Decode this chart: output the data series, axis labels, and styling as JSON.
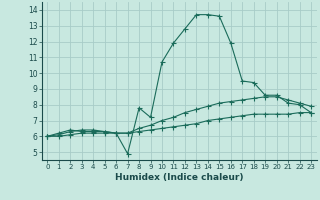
{
  "xlabel": "Humidex (Indice chaleur)",
  "bg_color": "#c8e8e0",
  "grid_color": "#a8ccc8",
  "line_color": "#1a6b5a",
  "xlim": [
    -0.5,
    23.5
  ],
  "ylim": [
    4.5,
    14.5
  ],
  "xticks": [
    0,
    1,
    2,
    3,
    4,
    5,
    6,
    7,
    8,
    9,
    10,
    11,
    12,
    13,
    14,
    15,
    16,
    17,
    18,
    19,
    20,
    21,
    22,
    23
  ],
  "yticks": [
    5,
    6,
    7,
    8,
    9,
    10,
    11,
    12,
    13,
    14
  ],
  "line1_x": [
    0,
    1,
    2,
    3,
    4,
    5,
    6,
    7,
    8,
    9,
    10,
    11,
    12,
    13,
    14,
    15,
    16,
    17,
    18,
    19,
    20,
    21,
    22,
    23
  ],
  "line1_y": [
    6.0,
    6.2,
    6.4,
    6.3,
    6.3,
    6.3,
    6.2,
    4.9,
    7.8,
    7.2,
    10.7,
    11.9,
    12.8,
    13.7,
    13.7,
    13.6,
    11.9,
    9.5,
    9.4,
    8.6,
    8.6,
    8.1,
    8.0,
    7.5
  ],
  "line2_x": [
    0,
    1,
    2,
    3,
    4,
    5,
    6,
    7,
    8,
    9,
    10,
    11,
    12,
    13,
    14,
    15,
    16,
    17,
    18,
    19,
    20,
    21,
    22,
    23
  ],
  "line2_y": [
    6.0,
    6.1,
    6.3,
    6.4,
    6.4,
    6.3,
    6.2,
    6.2,
    6.5,
    6.7,
    7.0,
    7.2,
    7.5,
    7.7,
    7.9,
    8.1,
    8.2,
    8.3,
    8.4,
    8.5,
    8.5,
    8.3,
    8.1,
    7.9
  ],
  "line3_x": [
    0,
    1,
    2,
    3,
    4,
    5,
    6,
    7,
    8,
    9,
    10,
    11,
    12,
    13,
    14,
    15,
    16,
    17,
    18,
    19,
    20,
    21,
    22,
    23
  ],
  "line3_y": [
    6.0,
    6.0,
    6.1,
    6.2,
    6.2,
    6.2,
    6.2,
    6.2,
    6.3,
    6.4,
    6.5,
    6.6,
    6.7,
    6.8,
    7.0,
    7.1,
    7.2,
    7.3,
    7.4,
    7.4,
    7.4,
    7.4,
    7.5,
    7.5
  ],
  "xtick_fontsize": 5.0,
  "ytick_fontsize": 5.5,
  "xlabel_fontsize": 6.5
}
